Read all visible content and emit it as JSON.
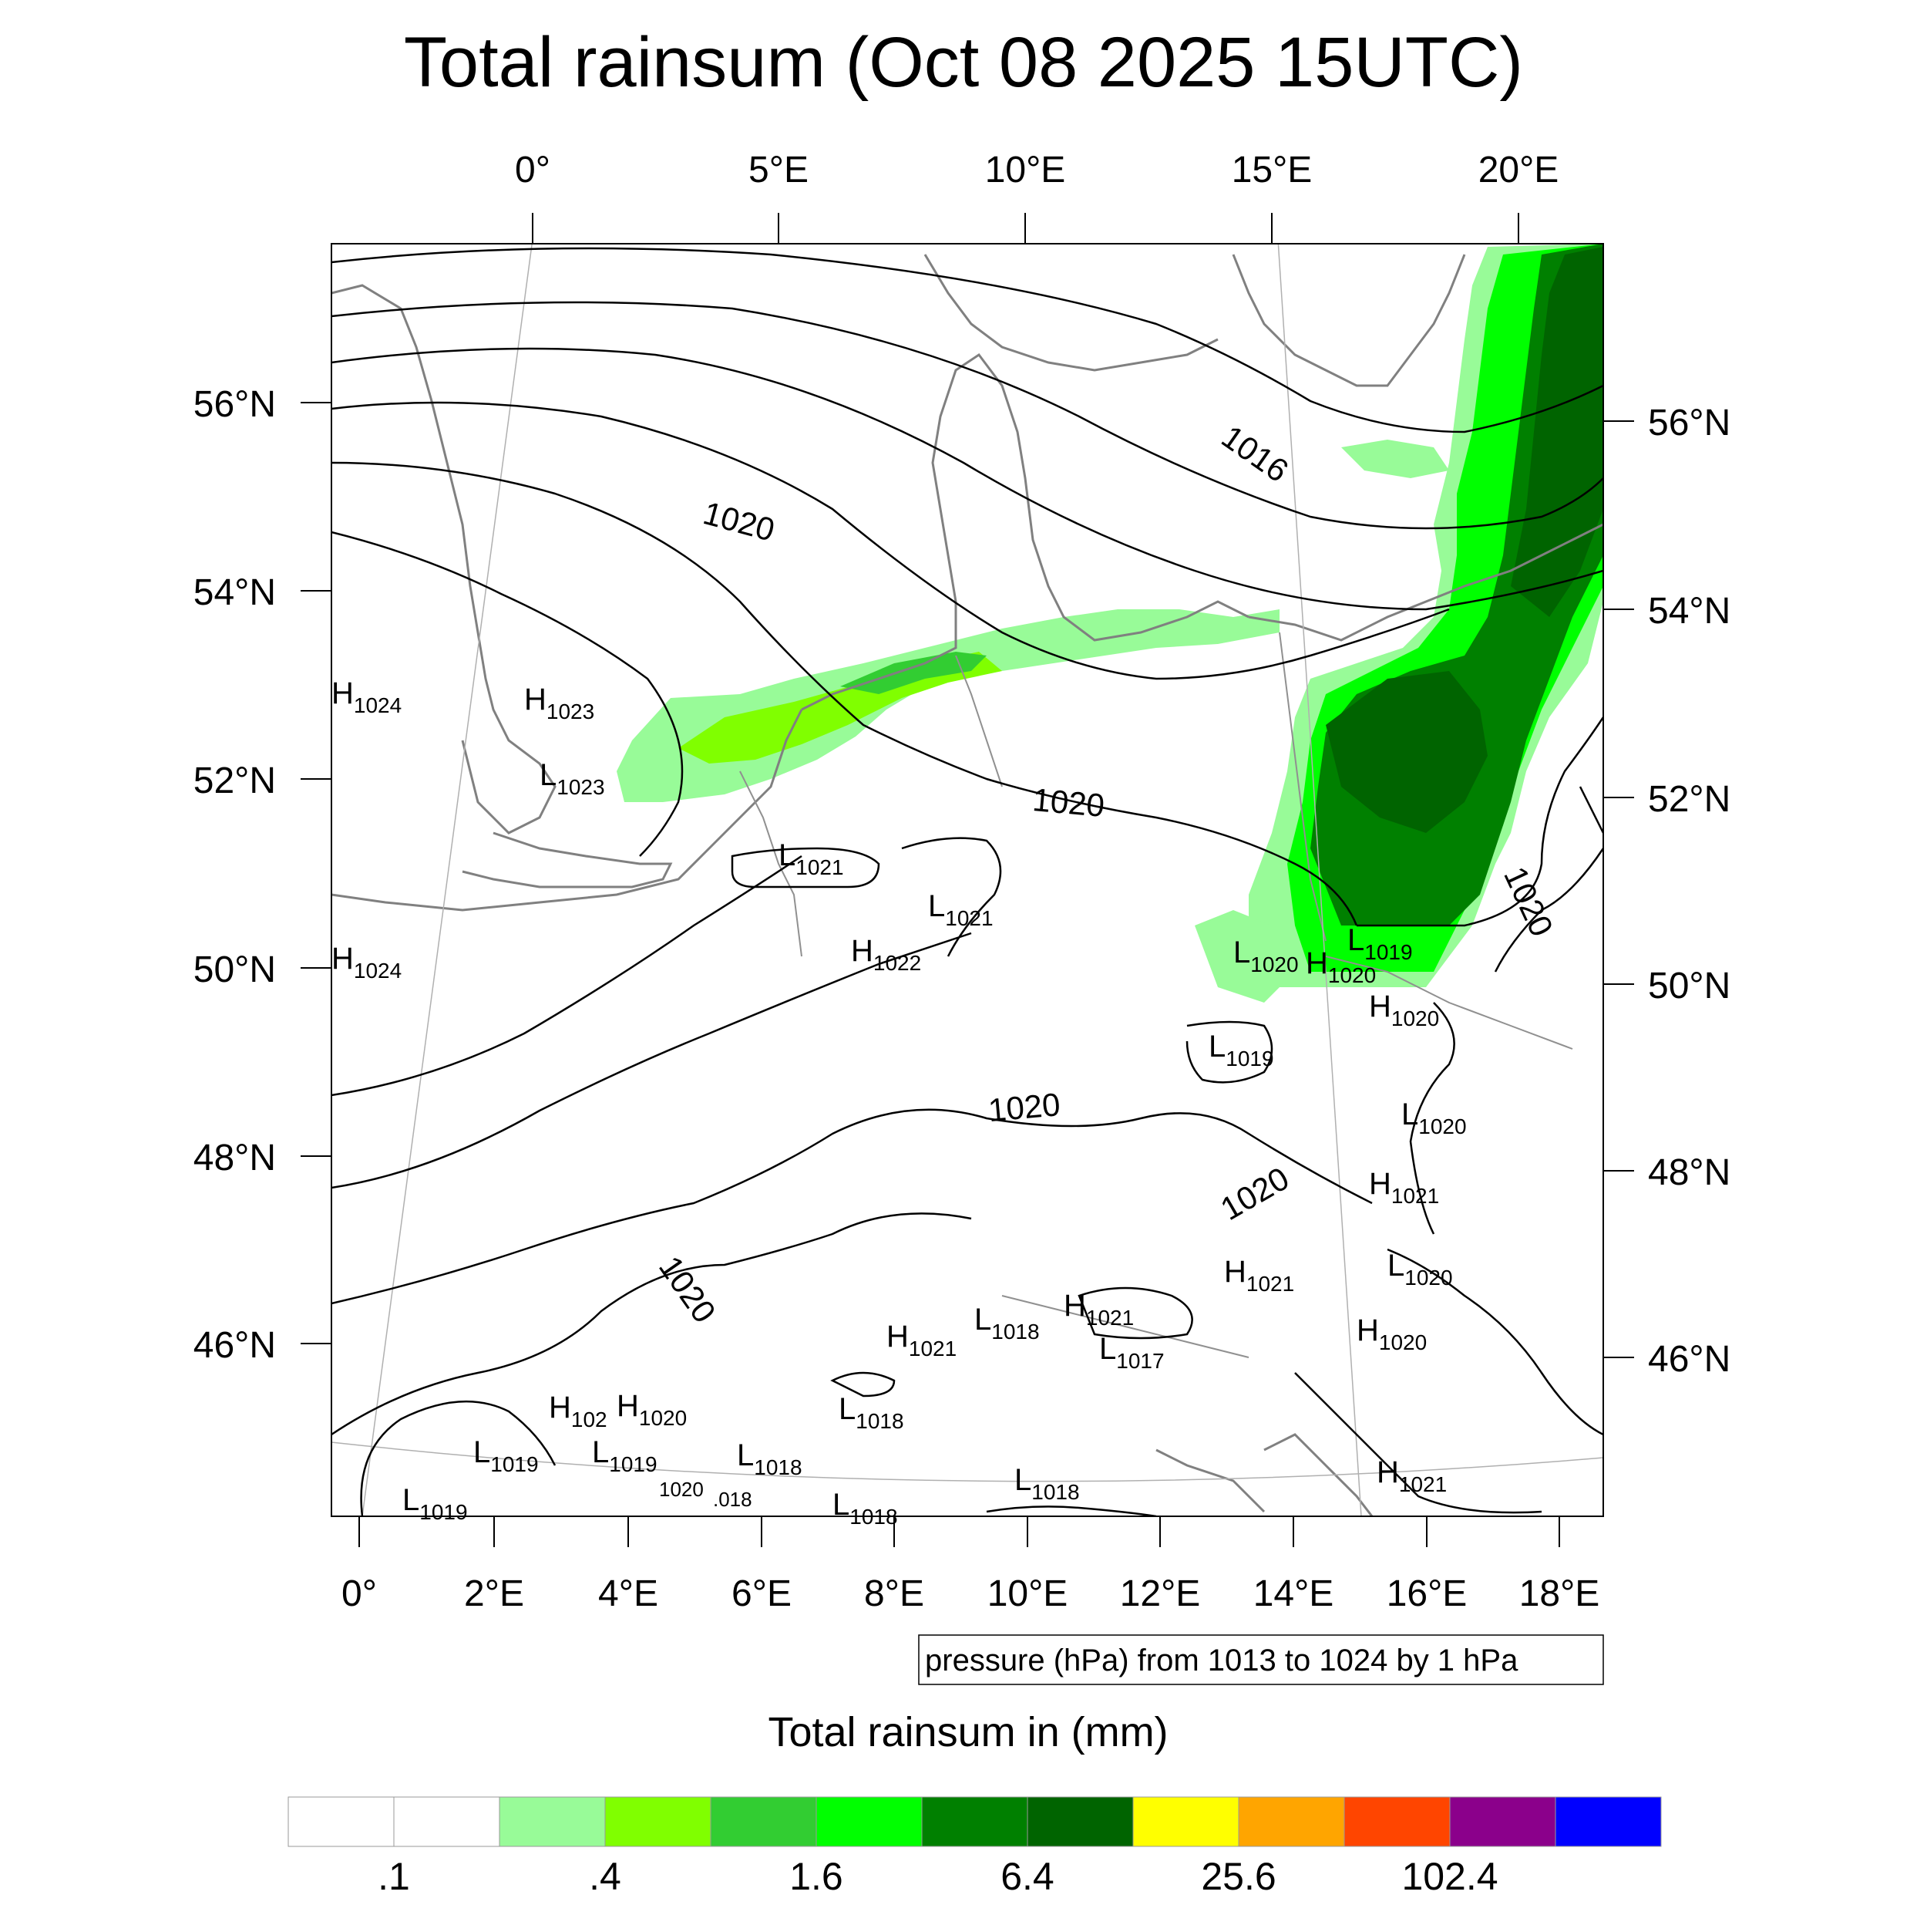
{
  "title": "Total rainsum (Oct 08 2025 15UTC)",
  "top_lon_labels": [
    "0°",
    "5°E",
    "10°E",
    "15°E",
    "20°E"
  ],
  "bottom_lon_labels": [
    "0°",
    "2°E",
    "4°E",
    "6°E",
    "8°E",
    "10°E",
    "12°E",
    "14°E",
    "16°E",
    "18°E"
  ],
  "left_lat_labels": [
    "56°N",
    "54°N",
    "52°N",
    "50°N",
    "48°N",
    "46°N"
  ],
  "right_lat_labels": [
    "56°N",
    "54°N",
    "52°N",
    "50°N",
    "48°N",
    "46°N"
  ],
  "isobar_labels": [
    "1020",
    "1016",
    "1020",
    "1020",
    "1020",
    "1020",
    "1020"
  ],
  "pressure_centers": [
    {
      "letter": "H",
      "value": "1024"
    },
    {
      "letter": "H",
      "value": "1023"
    },
    {
      "letter": "L",
      "value": "1023"
    },
    {
      "letter": "H",
      "value": "1024"
    },
    {
      "letter": "L",
      "value": "1021"
    },
    {
      "letter": "L",
      "value": "1021"
    },
    {
      "letter": "H",
      "value": "1022"
    },
    {
      "letter": "L",
      "value": "1020"
    },
    {
      "letter": "H",
      "value": "1020"
    },
    {
      "letter": "L",
      "value": "1019"
    },
    {
      "letter": "H",
      "value": "1020"
    },
    {
      "letter": "L",
      "value": "1019"
    },
    {
      "letter": "L",
      "value": "1020"
    },
    {
      "letter": "H",
      "value": "1021"
    },
    {
      "letter": "L",
      "value": "1020"
    },
    {
      "letter": "H",
      "value": "1021"
    },
    {
      "letter": "H",
      "value": "1020"
    },
    {
      "letter": "L",
      "value": "1018"
    },
    {
      "letter": "H",
      "value": "1021"
    },
    {
      "letter": "L",
      "value": "1017"
    },
    {
      "letter": "H",
      "value": "1021"
    },
    {
      "letter": "L",
      "value": "1018"
    },
    {
      "letter": "H",
      "value": "102"
    },
    {
      "letter": "H",
      "value": "1020"
    },
    {
      "letter": "L",
      "value": "1019"
    },
    {
      "letter": "L",
      "value": "1019"
    },
    {
      "letter": "L",
      "value": "1018"
    },
    {
      "letter": "L",
      "value": "1019"
    },
    {
      "letter": "L",
      "value": "1018"
    },
    {
      "letter": "H",
      "value": "1021"
    },
    {
      "letter": "L",
      "value": "1018"
    }
  ],
  "fragment_labels": [
    "1020",
    ".018"
  ],
  "info_box": "pressure (hPa) from 1013 to 1024 by 1 hPa",
  "legend": {
    "title": "Total rainsum in (mm)",
    "colors": [
      "#ffffff",
      "#ffffff",
      "#98fb98",
      "#80ff00",
      "#32cd32",
      "#00ff00",
      "#008000",
      "#006400",
      "#ffff00",
      "#ffa500",
      "#ff4500",
      "#8b008b",
      "#0000ff"
    ],
    "tick_labels": [
      ".1",
      ".4",
      "1.6",
      "6.4",
      "25.6",
      "102.4"
    ]
  }
}
